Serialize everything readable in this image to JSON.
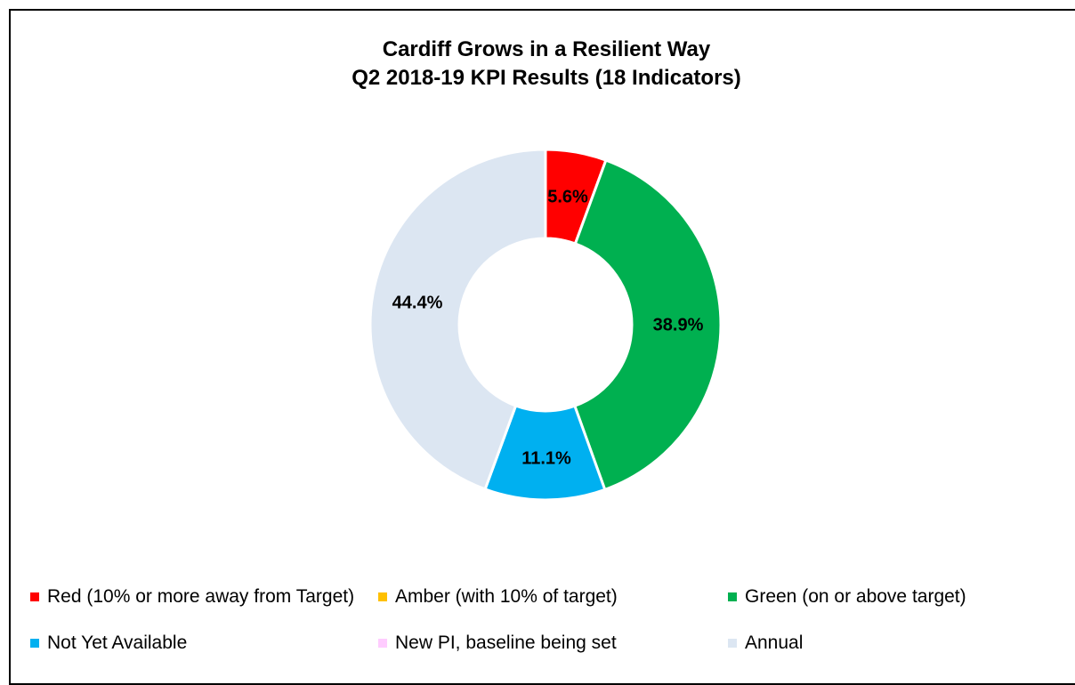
{
  "chart_data": {
    "type": "pie",
    "title": "Cardiff Grows in a Resilient Way",
    "subtitle": "Q2 2018-19 KPI Results (18 Indicators)",
    "variant": "donut",
    "series": [
      {
        "name": "Red (10% or more away from Target)",
        "value": 5.6,
        "label": "5.6%",
        "color": "#ff0000"
      },
      {
        "name": "Amber (with 10% of target)",
        "value": 0,
        "label": "",
        "color": "#ffc000"
      },
      {
        "name": "Green (on or above target)",
        "value": 38.9,
        "label": "38.9%",
        "color": "#00b050"
      },
      {
        "name": "Not Yet Available",
        "value": 11.1,
        "label": "11.1%",
        "color": "#00b0f0"
      },
      {
        "name": "New PI, baseline being set",
        "value": 0,
        "label": "",
        "color": "#ffccff"
      },
      {
        "name": "Annual",
        "value": 44.4,
        "label": "44.4%",
        "color": "#dce6f2"
      }
    ],
    "legend_position": "bottom"
  }
}
